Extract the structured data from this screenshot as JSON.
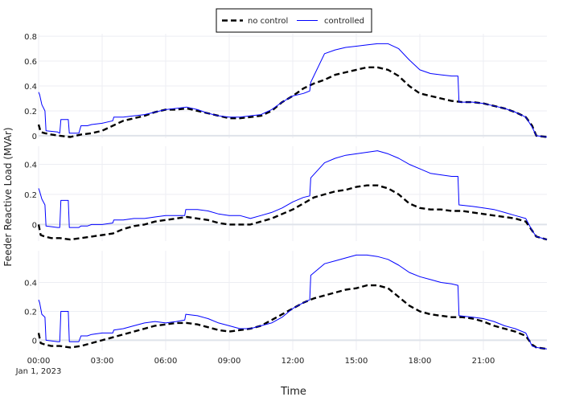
{
  "chart_data": {
    "type": "line",
    "xlabel": "Time",
    "ylabel": "Feeder Reactive Load (MVAr)",
    "x_range_hours": [
      0,
      24
    ],
    "x_ticks": [
      {
        "h": 0,
        "label": "00:00"
      },
      {
        "h": 3,
        "label": "03:00"
      },
      {
        "h": 6,
        "label": "06:00"
      },
      {
        "h": 9,
        "label": "09:00"
      },
      {
        "h": 12,
        "label": "12:00"
      },
      {
        "h": 15,
        "label": "15:00"
      },
      {
        "h": 18,
        "label": "18:00"
      },
      {
        "h": 21,
        "label": "21:00"
      }
    ],
    "x_date_label": "Jan 1, 2023",
    "legend": {
      "placement": "top-center",
      "entries": [
        {
          "name": "no control",
          "style": "dashed",
          "color": "#000000"
        },
        {
          "name": "controlled",
          "style": "solid",
          "color": "#0000ff"
        }
      ]
    },
    "grid": true,
    "panels": [
      {
        "ylim": [
          -0.02,
          0.82
        ],
        "y_ticks": [
          {
            "v": 0,
            "label": "0"
          },
          {
            "v": 0.2,
            "label": "0.2"
          },
          {
            "v": 0.4,
            "label": "0.4"
          },
          {
            "v": 0.6,
            "label": "0.6"
          },
          {
            "v": 0.8,
            "label": "0.8"
          }
        ],
        "series": [
          {
            "name": "no control",
            "x": [
              0,
              0.1,
              0.3,
              0.6,
              1.0,
              1.5,
              2.0,
              2.5,
              3.0,
              3.5,
              4.0,
              4.5,
              5.0,
              5.5,
              6.0,
              6.5,
              7.0,
              7.5,
              8.0,
              8.5,
              9.0,
              9.5,
              10.0,
              10.5,
              11.0,
              11.5,
              12.0,
              12.5,
              13.0,
              13.5,
              14.0,
              14.5,
              15.0,
              15.5,
              16.0,
              16.5,
              17.0,
              17.5,
              18.0,
              18.5,
              19.0,
              19.5,
              20.0,
              20.5,
              21.0,
              21.5,
              22.0,
              22.5,
              23.0,
              23.3,
              23.5,
              24.0
            ],
            "y": [
              0.09,
              0.03,
              0.02,
              0.01,
              0.0,
              -0.01,
              0.01,
              0.02,
              0.04,
              0.08,
              0.12,
              0.14,
              0.16,
              0.19,
              0.21,
              0.21,
              0.22,
              0.2,
              0.18,
              0.16,
              0.14,
              0.14,
              0.15,
              0.16,
              0.2,
              0.27,
              0.32,
              0.38,
              0.42,
              0.45,
              0.49,
              0.51,
              0.53,
              0.55,
              0.55,
              0.53,
              0.48,
              0.4,
              0.34,
              0.32,
              0.3,
              0.28,
              0.27,
              0.27,
              0.26,
              0.24,
              0.22,
              0.19,
              0.15,
              0.08,
              0.0,
              -0.01
            ]
          },
          {
            "name": "controlled",
            "x": [
              0,
              0.05,
              0.15,
              0.3,
              0.35,
              0.9,
              1.0,
              1.05,
              1.3,
              1.4,
              1.45,
              1.9,
              2.0,
              2.3,
              2.5,
              3.0,
              3.5,
              3.55,
              4.0,
              4.5,
              5.0,
              5.5,
              6.0,
              6.5,
              7.0,
              7.5,
              8.0,
              8.5,
              9.0,
              9.5,
              10.0,
              10.5,
              11.0,
              11.5,
              12.0,
              12.5,
              12.8,
              12.85,
              13.5,
              14.0,
              14.5,
              15.0,
              15.5,
              16.0,
              16.5,
              17.0,
              17.5,
              18.0,
              18.5,
              19.0,
              19.5,
              19.8,
              19.85,
              20.5,
              21.0,
              21.5,
              22.0,
              22.5,
              23.0,
              23.3,
              23.5,
              24.0
            ],
            "y": [
              0.35,
              0.33,
              0.25,
              0.2,
              0.04,
              0.03,
              0.02,
              0.13,
              0.13,
              0.13,
              0.02,
              0.02,
              0.08,
              0.08,
              0.09,
              0.1,
              0.12,
              0.15,
              0.15,
              0.16,
              0.17,
              0.19,
              0.21,
              0.22,
              0.23,
              0.21,
              0.18,
              0.16,
              0.15,
              0.15,
              0.16,
              0.17,
              0.21,
              0.27,
              0.32,
              0.34,
              0.36,
              0.43,
              0.66,
              0.69,
              0.71,
              0.72,
              0.73,
              0.74,
              0.74,
              0.7,
              0.61,
              0.53,
              0.5,
              0.49,
              0.48,
              0.48,
              0.27,
              0.27,
              0.26,
              0.24,
              0.22,
              0.19,
              0.15,
              0.07,
              0.0,
              -0.01
            ]
          }
        ]
      },
      {
        "ylim": [
          -0.11,
          0.52
        ],
        "y_ticks": [
          {
            "v": 0,
            "label": "0"
          },
          {
            "v": 0.2,
            "label": "0.2"
          },
          {
            "v": 0.4,
            "label": "0.4"
          }
        ],
        "series": [
          {
            "name": "no control",
            "x": [
              0,
              0.1,
              0.3,
              0.6,
              1.0,
              1.5,
              2.0,
              2.5,
              3.0,
              3.5,
              4.0,
              4.5,
              5.0,
              5.5,
              6.0,
              6.5,
              7.0,
              7.5,
              8.0,
              8.5,
              9.0,
              9.5,
              10.0,
              10.5,
              11.0,
              11.5,
              12.0,
              12.5,
              13.0,
              13.5,
              14.0,
              14.5,
              15.0,
              15.5,
              16.0,
              16.5,
              17.0,
              17.5,
              18.0,
              18.5,
              19.0,
              19.5,
              20.0,
              20.5,
              21.0,
              21.5,
              22.0,
              22.5,
              23.0,
              23.3,
              23.5,
              24.0
            ],
            "y": [
              0.0,
              -0.07,
              -0.08,
              -0.09,
              -0.09,
              -0.1,
              -0.09,
              -0.08,
              -0.07,
              -0.06,
              -0.03,
              -0.01,
              0.0,
              0.02,
              0.03,
              0.04,
              0.05,
              0.04,
              0.03,
              0.01,
              0.0,
              0.0,
              0.0,
              0.02,
              0.04,
              0.07,
              0.1,
              0.14,
              0.18,
              0.2,
              0.22,
              0.23,
              0.25,
              0.26,
              0.26,
              0.24,
              0.2,
              0.14,
              0.11,
              0.1,
              0.1,
              0.09,
              0.09,
              0.08,
              0.07,
              0.06,
              0.05,
              0.04,
              0.02,
              -0.04,
              -0.08,
              -0.1
            ]
          },
          {
            "name": "controlled",
            "x": [
              0,
              0.05,
              0.15,
              0.3,
              0.35,
              0.9,
              1.0,
              1.05,
              1.3,
              1.4,
              1.45,
              1.9,
              2.0,
              2.3,
              2.5,
              3.0,
              3.5,
              3.55,
              4.0,
              4.5,
              5.0,
              5.5,
              6.0,
              6.5,
              6.9,
              6.95,
              7.5,
              8.0,
              8.5,
              9.0,
              9.5,
              10.0,
              10.5,
              11.0,
              11.5,
              12.0,
              12.5,
              12.8,
              12.85,
              13.5,
              14.0,
              14.5,
              15.0,
              15.5,
              16.0,
              16.5,
              17.0,
              17.5,
              18.0,
              18.5,
              19.0,
              19.5,
              19.8,
              19.85,
              20.5,
              21.0,
              21.5,
              22.0,
              22.5,
              23.0,
              23.3,
              23.5,
              24.0
            ],
            "y": [
              0.24,
              0.22,
              0.17,
              0.13,
              -0.01,
              -0.02,
              -0.02,
              0.16,
              0.16,
              0.16,
              -0.02,
              -0.02,
              -0.01,
              -0.01,
              0.0,
              0.0,
              0.01,
              0.03,
              0.03,
              0.04,
              0.04,
              0.05,
              0.06,
              0.06,
              0.06,
              0.1,
              0.1,
              0.09,
              0.07,
              0.06,
              0.06,
              0.04,
              0.06,
              0.08,
              0.11,
              0.15,
              0.18,
              0.19,
              0.31,
              0.41,
              0.44,
              0.46,
              0.47,
              0.48,
              0.49,
              0.47,
              0.44,
              0.4,
              0.37,
              0.34,
              0.33,
              0.32,
              0.32,
              0.13,
              0.12,
              0.11,
              0.1,
              0.08,
              0.06,
              0.04,
              -0.04,
              -0.08,
              -0.1
            ]
          }
        ]
      },
      {
        "ylim": [
          -0.07,
          0.62
        ],
        "y_ticks": [
          {
            "v": 0,
            "label": "0"
          },
          {
            "v": 0.2,
            "label": "0.2"
          },
          {
            "v": 0.4,
            "label": "0.4"
          }
        ],
        "series": [
          {
            "name": "no control",
            "x": [
              0,
              0.1,
              0.3,
              0.6,
              1.0,
              1.5,
              2.0,
              2.5,
              3.0,
              3.5,
              4.0,
              4.5,
              5.0,
              5.5,
              6.0,
              6.5,
              7.0,
              7.5,
              8.0,
              8.5,
              9.0,
              9.5,
              10.0,
              10.5,
              11.0,
              11.5,
              12.0,
              12.5,
              13.0,
              13.5,
              14.0,
              14.5,
              15.0,
              15.5,
              16.0,
              16.5,
              17.0,
              17.5,
              18.0,
              18.5,
              19.0,
              19.5,
              20.0,
              20.5,
              21.0,
              21.5,
              22.0,
              22.5,
              23.0,
              23.3,
              23.5,
              24.0
            ],
            "y": [
              0.05,
              -0.02,
              -0.03,
              -0.04,
              -0.04,
              -0.05,
              -0.04,
              -0.02,
              0.0,
              0.02,
              0.04,
              0.06,
              0.08,
              0.1,
              0.11,
              0.12,
              0.12,
              0.11,
              0.09,
              0.07,
              0.06,
              0.07,
              0.08,
              0.1,
              0.14,
              0.18,
              0.22,
              0.26,
              0.29,
              0.31,
              0.33,
              0.35,
              0.36,
              0.38,
              0.38,
              0.36,
              0.3,
              0.24,
              0.2,
              0.18,
              0.17,
              0.16,
              0.16,
              0.15,
              0.13,
              0.1,
              0.08,
              0.06,
              0.03,
              -0.03,
              -0.05,
              -0.06
            ]
          },
          {
            "name": "controlled",
            "x": [
              0,
              0.05,
              0.15,
              0.3,
              0.35,
              0.9,
              1.0,
              1.05,
              1.3,
              1.4,
              1.45,
              1.9,
              2.0,
              2.3,
              2.5,
              3.0,
              3.5,
              3.55,
              4.0,
              4.5,
              5.0,
              5.5,
              6.0,
              6.5,
              6.9,
              6.95,
              7.5,
              8.0,
              8.5,
              9.0,
              9.5,
              10.0,
              10.5,
              11.0,
              11.5,
              12.0,
              12.5,
              12.8,
              12.85,
              13.5,
              14.0,
              14.5,
              15.0,
              15.5,
              16.0,
              16.5,
              17.0,
              17.5,
              18.0,
              18.5,
              19.0,
              19.5,
              19.8,
              19.85,
              20.5,
              21.0,
              21.5,
              22.0,
              22.5,
              23.0,
              23.3,
              23.5,
              24.0
            ],
            "y": [
              0.28,
              0.26,
              0.18,
              0.16,
              0.0,
              -0.01,
              -0.01,
              0.2,
              0.2,
              0.2,
              -0.01,
              -0.01,
              0.03,
              0.03,
              0.04,
              0.05,
              0.05,
              0.07,
              0.08,
              0.1,
              0.12,
              0.13,
              0.12,
              0.13,
              0.14,
              0.18,
              0.17,
              0.15,
              0.12,
              0.1,
              0.08,
              0.08,
              0.1,
              0.12,
              0.16,
              0.22,
              0.26,
              0.28,
              0.45,
              0.53,
              0.55,
              0.57,
              0.59,
              0.59,
              0.58,
              0.56,
              0.52,
              0.47,
              0.44,
              0.42,
              0.4,
              0.39,
              0.38,
              0.17,
              0.16,
              0.15,
              0.13,
              0.1,
              0.08,
              0.05,
              -0.04,
              -0.05,
              -0.06
            ]
          }
        ]
      }
    ]
  }
}
